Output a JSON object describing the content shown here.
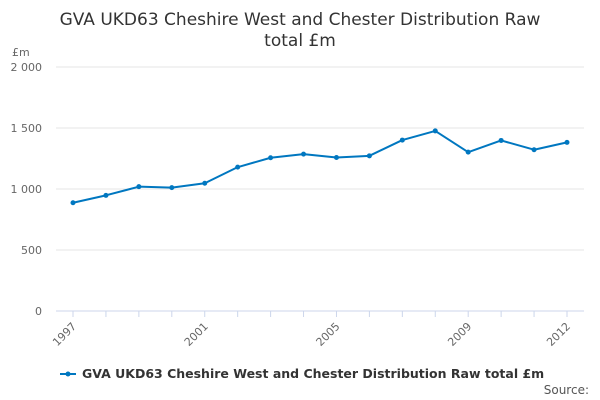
{
  "chart_data": {
    "type": "line",
    "title": [
      "GVA UKD63 Cheshire West and Chester Distribution Raw",
      "total £m"
    ],
    "ylabel": "£m",
    "xlabel": "",
    "ylim": [
      0,
      2000
    ],
    "yticks": [
      0,
      500,
      1000,
      1500,
      2000
    ],
    "ytick_labels": [
      "0",
      "500",
      "1 000",
      "1 500",
      "2 000"
    ],
    "x": [
      1997,
      1998,
      1999,
      2000,
      2001,
      2002,
      2003,
      2004,
      2005,
      2006,
      2007,
      2008,
      2009,
      2010,
      2011,
      2012
    ],
    "xtick_labels": [
      "1997",
      "2001",
      "2005",
      "2009",
      "2012"
    ],
    "series": [
      {
        "name": "GVA UKD63 Cheshire West and Chester Distribution Raw total £m",
        "color": "#0077c0",
        "values": [
          887,
          948,
          1019,
          1011,
          1047,
          1179,
          1256,
          1286,
          1258,
          1272,
          1401,
          1476,
          1302,
          1398,
          1322,
          1382
        ]
      }
    ],
    "grid": true,
    "legend": "bottom-left",
    "source_label": "Source:"
  }
}
